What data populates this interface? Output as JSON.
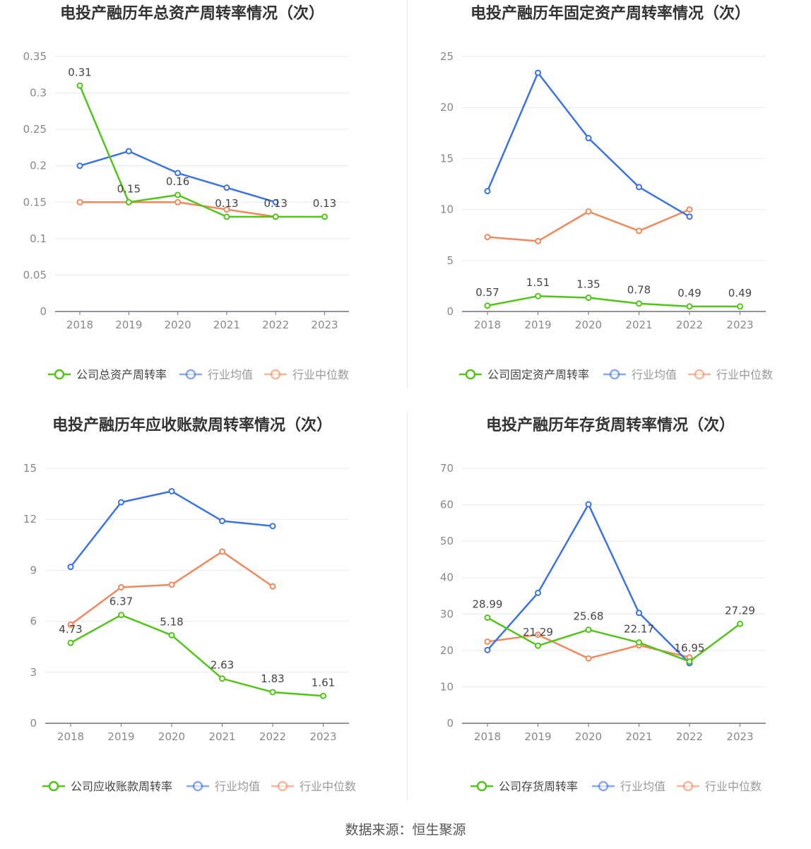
{
  "colors": {
    "company": "#52c41a",
    "avg": "#3b73e0",
    "median": "#f08a5d"
  },
  "source": "数据来源：恒生聚源",
  "charts": [
    {
      "type": "line",
      "title": "电投产融历年总资产周转率情况（次）",
      "categories": [
        "2018",
        "2019",
        "2020",
        "2021",
        "2022",
        "2023"
      ],
      "yticks": [
        "0",
        "0.05",
        "0.1",
        "0.15",
        "0.2",
        "0.25",
        "0.3",
        "0.35"
      ],
      "ylim": [
        0,
        0.35
      ],
      "series": [
        {
          "name": "公司总资产周转率",
          "role": "company",
          "values": [
            0.31,
            0.15,
            0.16,
            0.13,
            0.13,
            0.13
          ],
          "labels": [
            "0.31",
            "0.15",
            "0.16",
            "0.13",
            "0.13",
            "0.13"
          ]
        },
        {
          "name": "行业均值",
          "role": "avg",
          "values": [
            0.2,
            0.22,
            0.19,
            0.17,
            0.15,
            null
          ]
        },
        {
          "name": "行业中位数",
          "role": "median",
          "values": [
            0.15,
            0.15,
            0.15,
            0.14,
            0.13,
            null
          ]
        }
      ]
    },
    {
      "type": "line",
      "title": "电投产融历年固定资产周转率情况（次）",
      "categories": [
        "2018",
        "2019",
        "2020",
        "2021",
        "2022",
        "2023"
      ],
      "yticks": [
        "0",
        "5",
        "10",
        "15",
        "20",
        "25"
      ],
      "ylim": [
        0,
        25
      ],
      "series": [
        {
          "name": "公司固定资产周转率",
          "role": "company",
          "values": [
            0.57,
            1.51,
            1.35,
            0.78,
            0.49,
            0.49
          ],
          "labels": [
            "0.57",
            "1.51",
            "1.35",
            "0.78",
            "0.49",
            "0.49"
          ]
        },
        {
          "name": "行业均值",
          "role": "avg",
          "values": [
            11.8,
            23.4,
            17.0,
            12.2,
            9.3,
            null
          ]
        },
        {
          "name": "行业中位数",
          "role": "median",
          "values": [
            7.3,
            6.9,
            9.8,
            7.9,
            10.0,
            null
          ]
        }
      ]
    },
    {
      "type": "line",
      "title": "电投产融历年应收账款周转率情况（次）",
      "categories": [
        "2018",
        "2019",
        "2020",
        "2021",
        "2022",
        "2023"
      ],
      "yticks": [
        "0",
        "3",
        "6",
        "9",
        "12",
        "15"
      ],
      "ylim": [
        0,
        15
      ],
      "series": [
        {
          "name": "公司应收账款周转率",
          "role": "company",
          "values": [
            4.73,
            6.37,
            5.18,
            2.63,
            1.83,
            1.61
          ],
          "labels": [
            "4.73",
            "6.37",
            "5.18",
            "2.63",
            "1.83",
            "1.61"
          ]
        },
        {
          "name": "行业均值",
          "role": "avg",
          "values": [
            9.2,
            13.0,
            13.65,
            11.9,
            11.6,
            null
          ]
        },
        {
          "name": "行业中位数",
          "role": "median",
          "values": [
            5.8,
            8.0,
            8.15,
            10.1,
            8.05,
            null
          ]
        }
      ]
    },
    {
      "type": "line",
      "title": "电投产融历年存货周转率情况（次）",
      "categories": [
        "2018",
        "2019",
        "2020",
        "2021",
        "2022",
        "2023"
      ],
      "yticks": [
        "0",
        "10",
        "20",
        "30",
        "40",
        "50",
        "60",
        "70"
      ],
      "ylim": [
        0,
        70
      ],
      "series": [
        {
          "name": "公司存货周转率",
          "role": "company",
          "values": [
            28.99,
            21.29,
            25.68,
            22.17,
            16.95,
            27.29
          ],
          "labels": [
            "28.99",
            "21.29",
            "25.68",
            "22.17",
            "16.95",
            "27.29"
          ]
        },
        {
          "name": "行业均值",
          "role": "avg",
          "values": [
            20.1,
            35.8,
            60.1,
            30.3,
            16.5,
            null
          ]
        },
        {
          "name": "行业中位数",
          "role": "median",
          "values": [
            22.4,
            24.3,
            17.8,
            21.4,
            18.1,
            null
          ]
        }
      ]
    }
  ]
}
